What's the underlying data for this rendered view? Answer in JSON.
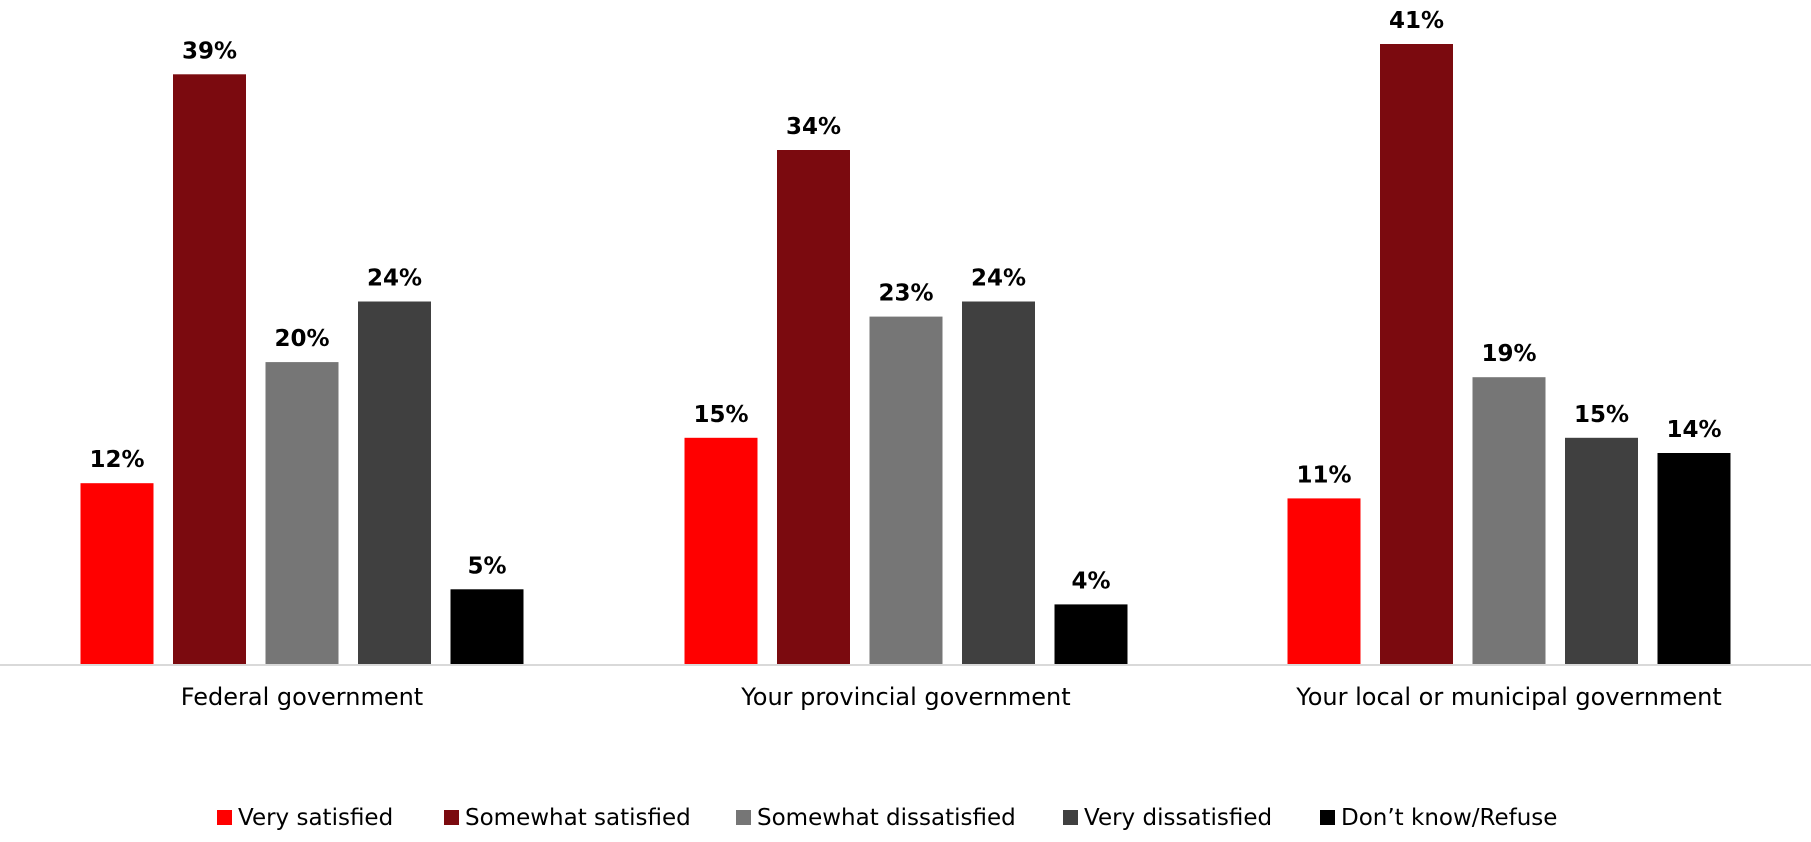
{
  "chart_data": {
    "type": "bar",
    "categories": [
      "Federal government",
      "Your provincial government",
      "Your local or municipal government"
    ],
    "series": [
      {
        "name": "Very satisfied",
        "color": "#ff0000",
        "values": [
          12,
          15,
          11
        ]
      },
      {
        "name": "Somewhat satisfied",
        "color": "#7b0a0f",
        "values": [
          39,
          34,
          41
        ]
      },
      {
        "name": "Somewhat dissatisfied",
        "color": "#767676",
        "values": [
          20,
          23,
          19
        ]
      },
      {
        "name": "Very dissatisfied",
        "color": "#404040",
        "values": [
          24,
          24,
          15
        ]
      },
      {
        "name": "Don’t know/Refuse",
        "color": "#000000",
        "values": [
          5,
          4,
          14
        ]
      }
    ],
    "value_suffix": "%",
    "ylim": [
      0,
      41
    ],
    "grid": false,
    "legend_position": "bottom",
    "axis_color": "#d9d9d9"
  }
}
